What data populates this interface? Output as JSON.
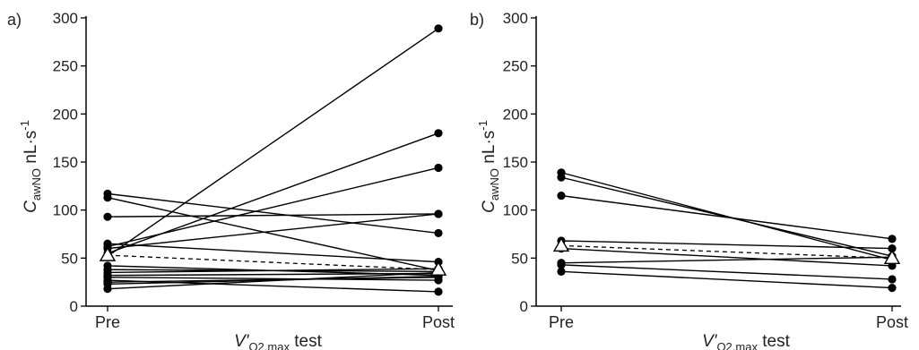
{
  "chart_data": [
    {
      "type": "line",
      "panel_label": "a)",
      "categories": [
        "Pre",
        "Post"
      ],
      "ylim": [
        0,
        300
      ],
      "yticks": [
        "0",
        "50",
        "100",
        "150",
        "200",
        "250",
        "300"
      ],
      "ylabel": {
        "main": "C",
        "sub": "awNO",
        "unit": " nL·s",
        "sup": "-1"
      },
      "xlabel": {
        "main": "V'",
        "sub": "O2,max",
        "rest": " test"
      },
      "series": [
        {
          "values": [
            117,
            76
          ]
        },
        {
          "values": [
            113,
            37
          ]
        },
        {
          "values": [
            93,
            96
          ]
        },
        {
          "values": [
            65,
            46
          ]
        },
        {
          "values": [
            62,
            144
          ]
        },
        {
          "values": [
            60,
            96
          ]
        },
        {
          "values": [
            55,
            180
          ]
        },
        {
          "values": [
            52,
            289
          ]
        },
        {
          "values": [
            42,
            32
          ]
        },
        {
          "values": [
            38,
            36
          ]
        },
        {
          "values": [
            35,
            39
          ]
        },
        {
          "values": [
            32,
            34
          ]
        },
        {
          "values": [
            30,
            27
          ]
        },
        {
          "values": [
            27,
            15
          ]
        },
        {
          "values": [
            25,
            30
          ]
        },
        {
          "values": [
            23,
            31
          ]
        },
        {
          "values": [
            18,
            35
          ]
        }
      ],
      "mean": {
        "values": [
          53,
          38
        ],
        "style": "dashed",
        "marker": "open-triangle"
      }
    },
    {
      "type": "line",
      "panel_label": "b)",
      "categories": [
        "Pre",
        "Post"
      ],
      "ylim": [
        0,
        300
      ],
      "yticks": [
        "0",
        "50",
        "100",
        "150",
        "200",
        "250",
        "300"
      ],
      "ylabel": {
        "main": "C",
        "sub": "awNO",
        "unit": " nL·s",
        "sup": "-1"
      },
      "xlabel": {
        "main": "V'",
        "sub": "O2,max",
        "rest": " test"
      },
      "series": [
        {
          "values": [
            139,
            48
          ]
        },
        {
          "values": [
            134,
            52
          ]
        },
        {
          "values": [
            115,
            70
          ]
        },
        {
          "values": [
            68,
            60
          ]
        },
        {
          "values": [
            60,
            42
          ]
        },
        {
          "values": [
            45,
            51
          ]
        },
        {
          "values": [
            43,
            28
          ]
        },
        {
          "values": [
            36,
            19
          ]
        }
      ],
      "mean": {
        "values": [
          63,
          50
        ],
        "style": "dashed",
        "marker": "open-triangle"
      }
    }
  ]
}
